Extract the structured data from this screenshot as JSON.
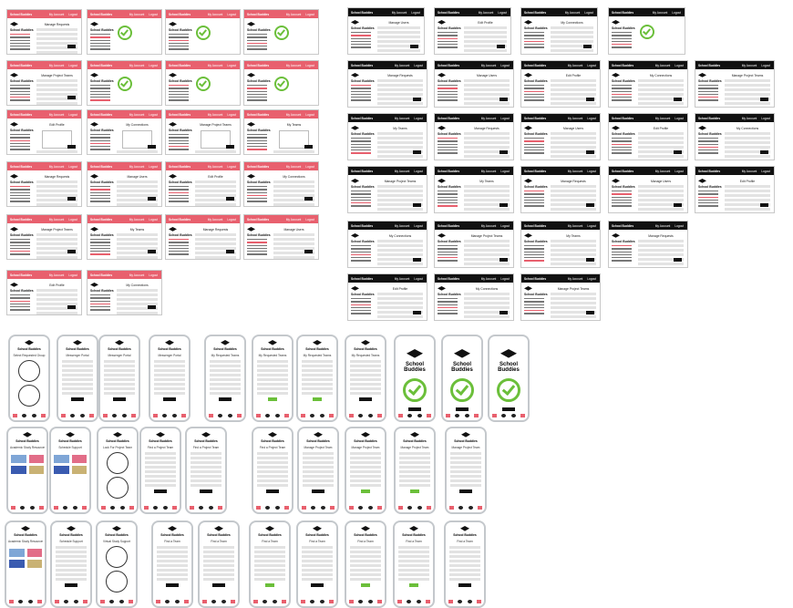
{
  "web_screens": {
    "brand": "School Buddies",
    "header_links": [
      "My Account",
      "Logout"
    ],
    "sidebar_logo": "School Buddies",
    "titles": [
      "Manage Requests",
      "Manage Users",
      "Edit Profile",
      "My Connections",
      "Manage Project Teams",
      "My Teams"
    ]
  },
  "mobile_screens": {
    "logo": "School Buddies",
    "titles": [
      "Select Requested Group",
      "Messenger Portal",
      "My Requested Teams",
      "Academic Study Resources",
      "Schedule Support",
      "Look For Project Team",
      "Find a Project Team",
      "Manage Project Team",
      "Virtual Study Support",
      "Find a Team"
    ]
  },
  "colors": {
    "accent": "#e8606e",
    "dark": "#111111",
    "success": "#6bbf3a",
    "phone_frame": "#c4c8cc"
  }
}
